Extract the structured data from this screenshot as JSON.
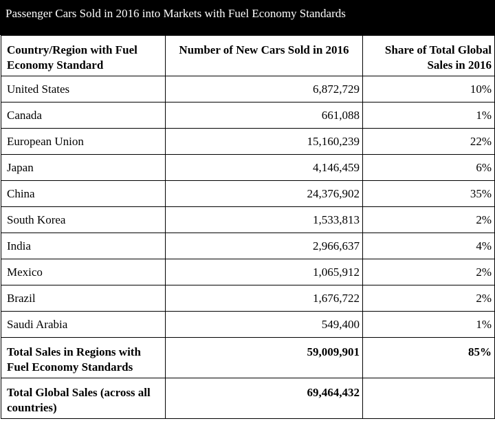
{
  "title": "Passenger Cars Sold in 2016 into Markets with Fuel Economy Standards",
  "headers": {
    "country": "Country/Region with Fuel Economy Standard",
    "cars_sold": "Number of New Cars Sold in 2016",
    "share": "Share of Total Global Sales in 2016"
  },
  "rows": [
    {
      "country": "United States",
      "cars_sold": "6,872,729",
      "share": "10%"
    },
    {
      "country": "Canada",
      "cars_sold": "661,088",
      "share": "1%"
    },
    {
      "country": "European Union",
      "cars_sold": "15,160,239",
      "share": "22%"
    },
    {
      "country": "Japan",
      "cars_sold": "4,146,459",
      "share": "6%"
    },
    {
      "country": "China",
      "cars_sold": "24,376,902",
      "share": "35%"
    },
    {
      "country": "South Korea",
      "cars_sold": "1,533,813",
      "share": "2%"
    },
    {
      "country": "India",
      "cars_sold": "2,966,637",
      "share": "4%"
    },
    {
      "country": "Mexico",
      "cars_sold": "1,065,912",
      "share": "2%"
    },
    {
      "country": "Brazil",
      "cars_sold": "1,676,722",
      "share": "2%"
    },
    {
      "country": "Saudi Arabia",
      "cars_sold": "549,400",
      "share": "1%"
    }
  ],
  "total_regions": {
    "label": "Total Sales in Regions with Fuel Economy Standards",
    "cars_sold": "59,009,901",
    "share": "85%"
  },
  "total_global": {
    "label": "Total Global Sales (across all countries)",
    "cars_sold": "69,464,432",
    "share": ""
  }
}
